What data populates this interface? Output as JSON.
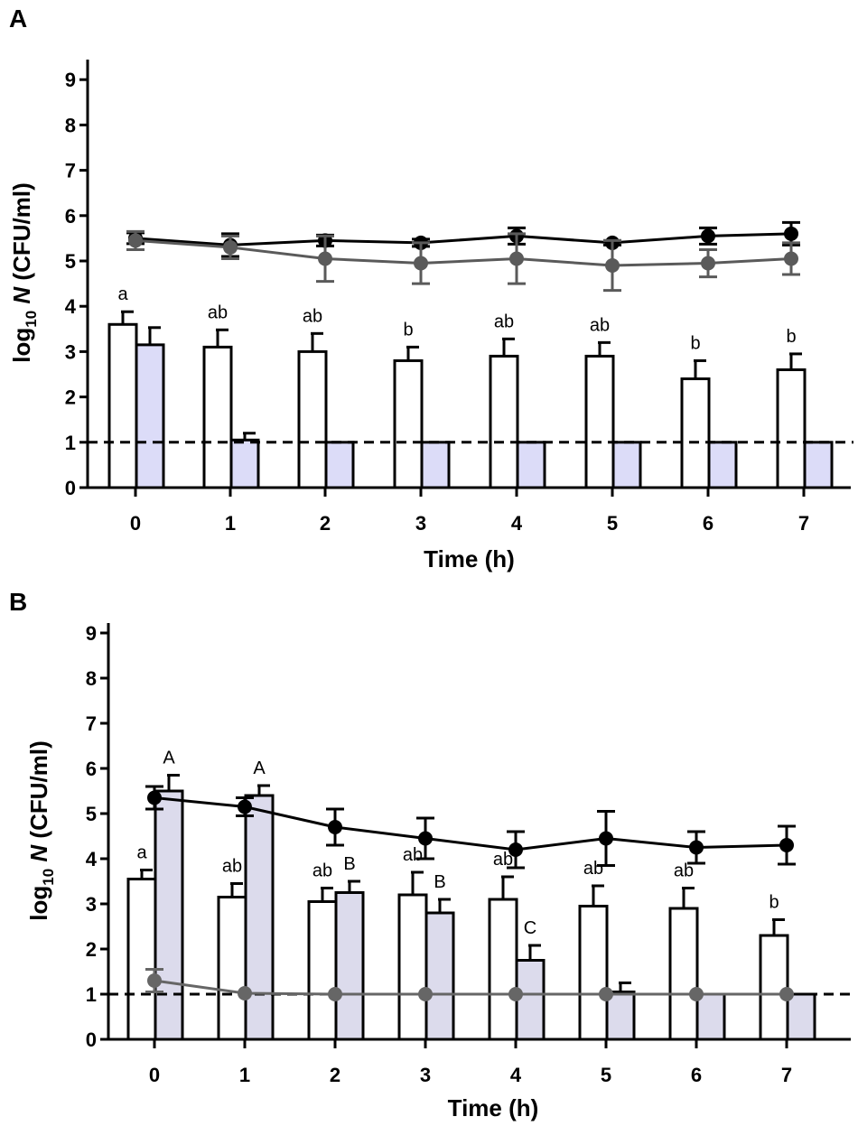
{
  "chart_data": [
    {
      "panel": "A",
      "type": "bar+line",
      "xlabel": "Time (h)",
      "ylabel_prefix": "log",
      "ylabel_sub": "10",
      "ylabel_var": "N",
      "ylabel_suffix": "(CFU/ml)",
      "ylim": [
        0,
        9
      ],
      "yticks": [
        "0",
        "1",
        "2",
        "3",
        "4",
        "5",
        "6",
        "7",
        "8",
        "9"
      ],
      "categories": [
        "0",
        "1",
        "2",
        "3",
        "4",
        "5",
        "6",
        "7"
      ],
      "detection_limit": 1,
      "bar_series": [
        {
          "name": "white bars",
          "color": "#ffffff",
          "values": [
            3.6,
            3.1,
            3.0,
            2.8,
            2.9,
            2.9,
            2.4,
            2.6
          ],
          "errors": [
            0.28,
            0.38,
            0.4,
            0.3,
            0.38,
            0.3,
            0.4,
            0.35
          ],
          "labels": [
            "a",
            "ab",
            "ab",
            "b",
            "ab",
            "ab",
            "b",
            "b"
          ]
        },
        {
          "name": "blue bars",
          "color": "#dcdcf8",
          "values": [
            3.15,
            1.05,
            1.0,
            1.0,
            1.0,
            1.0,
            1.0,
            1.0
          ],
          "errors": [
            0.38,
            0.15,
            0,
            0,
            0,
            0,
            0,
            0
          ],
          "labels": [
            "",
            "",
            "",
            "",
            "",
            "",
            "",
            ""
          ]
        }
      ],
      "line_series": [
        {
          "name": "black line",
          "color": "#000000",
          "values": [
            5.5,
            5.35,
            5.45,
            5.4,
            5.55,
            5.4,
            5.55,
            5.6
          ],
          "errors": [
            0.12,
            0.25,
            0.12,
            0.08,
            0.18,
            0.05,
            0.18,
            0.25
          ]
        },
        {
          "name": "grey line",
          "color": "#5a5a5a",
          "values": [
            5.45,
            5.3,
            5.05,
            4.95,
            5.05,
            4.9,
            4.95,
            5.05
          ],
          "errors": [
            0.2,
            0.25,
            0.5,
            0.45,
            0.55,
            0.55,
            0.3,
            0.35
          ]
        }
      ]
    },
    {
      "panel": "B",
      "type": "bar+line",
      "xlabel": "Time (h)",
      "ylabel_prefix": "log",
      "ylabel_sub": "10",
      "ylabel_var": "N",
      "ylabel_suffix": "(CFU/ml)",
      "ylim": [
        0,
        9
      ],
      "yticks": [
        "0",
        "1",
        "2",
        "3",
        "4",
        "5",
        "6",
        "7",
        "8",
        "9"
      ],
      "categories": [
        "0",
        "1",
        "2",
        "3",
        "4",
        "5",
        "6",
        "7"
      ],
      "detection_limit": 1,
      "bar_series": [
        {
          "name": "white bars",
          "color": "#ffffff",
          "values": [
            3.55,
            3.15,
            3.05,
            3.2,
            3.1,
            2.95,
            2.9,
            2.3
          ],
          "errors": [
            0.2,
            0.3,
            0.3,
            0.5,
            0.5,
            0.45,
            0.45,
            0.35
          ],
          "labels": [
            "a",
            "ab",
            "ab",
            "ab",
            "ab",
            "ab",
            "ab",
            "b"
          ]
        },
        {
          "name": "lavender bars",
          "color": "#dcdbec",
          "values": [
            5.5,
            5.4,
            3.25,
            2.8,
            1.75,
            1.05,
            1.0,
            1.0
          ],
          "errors": [
            0.35,
            0.22,
            0.25,
            0.3,
            0.33,
            0.2,
            0,
            0
          ],
          "labels": [
            "A",
            "A",
            "B",
            "B",
            "C",
            "",
            "",
            ""
          ]
        }
      ],
      "line_series": [
        {
          "name": "black line",
          "color": "#000000",
          "values": [
            5.35,
            5.15,
            4.7,
            4.45,
            4.2,
            4.45,
            4.25,
            4.3
          ],
          "errors": [
            0.25,
            0.2,
            0.4,
            0.45,
            0.4,
            0.6,
            0.35,
            0.42
          ]
        },
        {
          "name": "grey line",
          "color": "#666666",
          "values": [
            1.3,
            1.02,
            1.0,
            1.0,
            1.0,
            1.0,
            1.0,
            1.0
          ],
          "errors": [
            0.25,
            0,
            0,
            0,
            0,
            0,
            0,
            0
          ]
        }
      ]
    }
  ]
}
